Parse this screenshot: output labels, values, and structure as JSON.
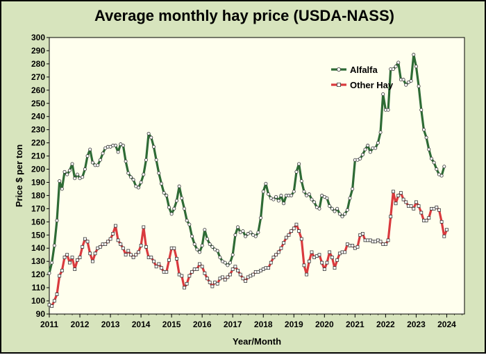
{
  "chart_data": {
    "type": "line",
    "title": "Average monthly hay price (USDA-NASS)",
    "xlabel": "Year/Month",
    "ylabel": "Price $ per ton",
    "ylim": [
      90,
      300
    ],
    "yticks": [
      90,
      100,
      110,
      120,
      130,
      140,
      150,
      160,
      170,
      180,
      190,
      200,
      210,
      220,
      230,
      240,
      250,
      260,
      270,
      280,
      290,
      300
    ],
    "xlim": [
      2011,
      2024.58
    ],
    "xticks": [
      "2011",
      "2012",
      "2013",
      "2014",
      "2015",
      "2016",
      "2017",
      "2018",
      "2019",
      "2020",
      "2021",
      "2022",
      "2023",
      "2024"
    ],
    "grid": false,
    "legend_position": "upper-right",
    "x_start_year": 2011,
    "x_step": "monthly",
    "series": [
      {
        "name": "Alfalfa",
        "color": "#2e6b35",
        "marker": "circle",
        "values": [
          121,
          129,
          142,
          161,
          191,
          185,
          198,
          196,
          199,
          204,
          193,
          196,
          193,
          194,
          200,
          210,
          215,
          205,
          203,
          203,
          207,
          212,
          216,
          217,
          217,
          218,
          218,
          213,
          219,
          218,
          206,
          197,
          194,
          192,
          187,
          186,
          190,
          196,
          207,
          227,
          224,
          217,
          207,
          197,
          189,
          182,
          180,
          171,
          166,
          170,
          176,
          187,
          178,
          170,
          161,
          158,
          149,
          143,
          139,
          137,
          142,
          154,
          147,
          143,
          141,
          139,
          138,
          133,
          130,
          129,
          127,
          129,
          135,
          150,
          156,
          152,
          153,
          149,
          151,
          152,
          150,
          149,
          152,
          163,
          183,
          189,
          181,
          178,
          177,
          179,
          176,
          180,
          174,
          180,
          180,
          180,
          183,
          198,
          204,
          191,
          183,
          180,
          181,
          177,
          175,
          171,
          170,
          180,
          179,
          178,
          172,
          170,
          168,
          170,
          166,
          164,
          166,
          169,
          178,
          185,
          207,
          207,
          208,
          211,
          215,
          218,
          213,
          216,
          216,
          220,
          228,
          257,
          245,
          245,
          276,
          276,
          278,
          281,
          268,
          268,
          264,
          266,
          267,
          287,
          278,
          263,
          245,
          230,
          224,
          215,
          208,
          205,
          200,
          196,
          195,
          202
        ]
      },
      {
        "name": "Other Hay",
        "color": "#d93a3e",
        "marker": "square",
        "values": [
          97,
          96,
          100,
          105,
          119,
          123,
          133,
          135,
          129,
          133,
          124,
          131,
          133,
          141,
          147,
          145,
          136,
          130,
          136,
          140,
          141,
          143,
          143,
          145,
          147,
          151,
          157,
          146,
          143,
          140,
          135,
          138,
          135,
          133,
          135,
          137,
          142,
          156,
          141,
          133,
          133,
          130,
          126,
          128,
          125,
          122,
          122,
          131,
          140,
          140,
          132,
          120,
          119,
          110,
          113,
          119,
          122,
          124,
          124,
          128,
          126,
          121,
          117,
          114,
          111,
          114,
          113,
          117,
          118,
          116,
          118,
          120,
          124,
          126,
          123,
          120,
          117,
          115,
          118,
          119,
          120,
          122,
          122,
          123,
          124,
          125,
          125,
          129,
          133,
          135,
          137,
          140,
          144,
          148,
          150,
          153,
          155,
          158,
          153,
          147,
          127,
          120,
          130,
          137,
          133,
          134,
          135,
          129,
          124,
          129,
          137,
          133,
          125,
          131,
          136,
          137,
          137,
          143,
          142,
          142,
          140,
          141,
          150,
          151,
          146,
          146,
          146,
          145,
          145,
          146,
          145,
          143,
          143,
          146,
          164,
          183,
          174,
          180,
          182,
          177,
          175,
          172,
          172,
          170,
          175,
          172,
          167,
          161,
          161,
          163,
          170,
          170,
          171,
          169,
          160,
          149,
          154
        ]
      }
    ]
  }
}
